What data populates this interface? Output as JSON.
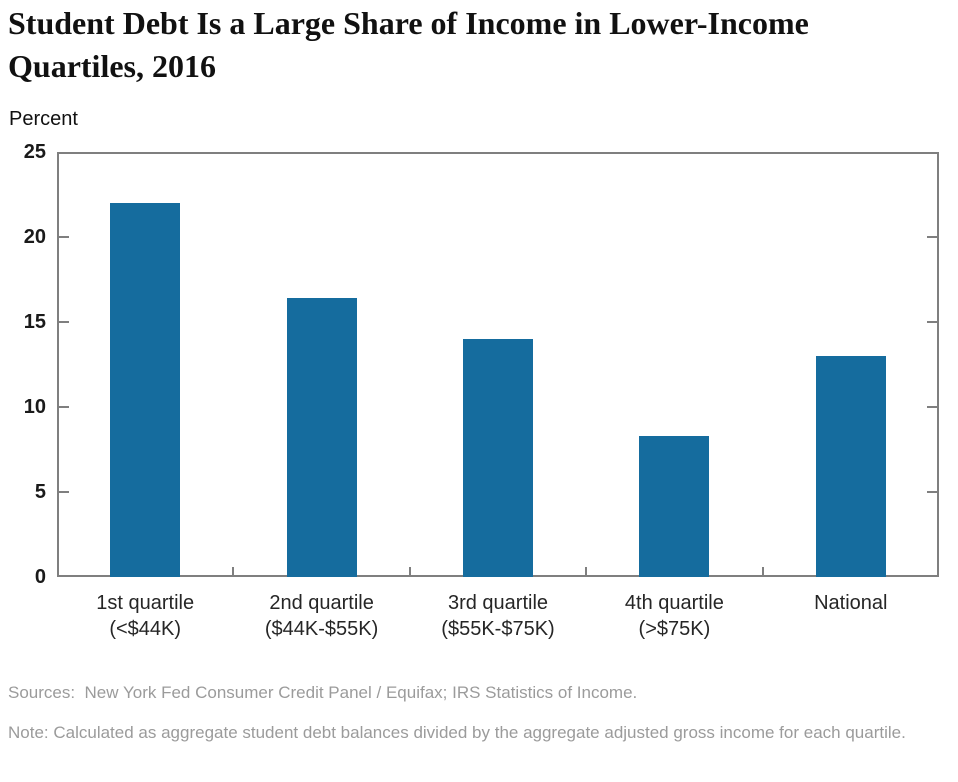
{
  "title": {
    "lines": [
      "Student Debt Is a Large Share of Income in Lower-Income",
      "Quartiles, 2016"
    ]
  },
  "chart_data": {
    "type": "bar",
    "title": "Student Debt Is a Large Share of Income in Lower-Income Quartiles, 2016",
    "categories": [
      "1st quartile\n(<$44K)",
      "2nd quartile\n($44K-$55K)",
      "3rd quartile\n($55K-$75K)",
      "4th quartile\n(>$75K)",
      "National"
    ],
    "values": [
      22,
      16.4,
      14,
      8.3,
      13
    ],
    "xlabel": "",
    "ylabel": "Percent",
    "ylim": [
      0,
      25
    ],
    "yticks": [
      0,
      5,
      10,
      15,
      20,
      25
    ],
    "grid": false,
    "legend": "none",
    "bar_color": "#156C9E",
    "axis_color": "#7f7f7f",
    "tick_label_color": "#1a1a1a",
    "category_label_color": "#262626"
  },
  "footer": {
    "sources": "Sources:  New York Fed Consumer Credit Panel / Equifax; IRS Statistics of Income.",
    "note": "Note: Calculated as aggregate student debt balances divided by the aggregate adjusted gross income for each quartile."
  }
}
